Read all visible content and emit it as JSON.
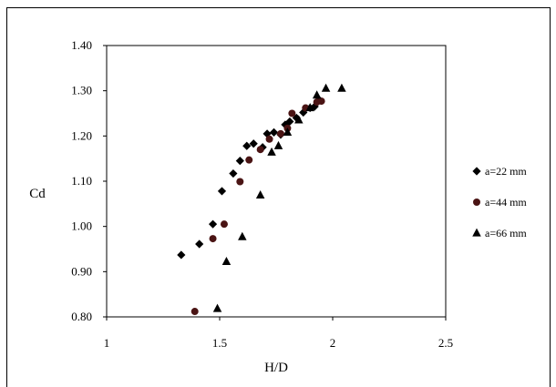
{
  "chart_data": {
    "type": "scatter",
    "title": "",
    "xlabel": "H/D",
    "ylabel": "Cd",
    "xlim": [
      1,
      2.5
    ],
    "ylim": [
      0.8,
      1.4
    ],
    "xticks": [
      1,
      1.5,
      2,
      2.5
    ],
    "xtick_labels": [
      "1",
      "1.5",
      "2",
      "2.5"
    ],
    "yticks": [
      0.8,
      0.9,
      1.0,
      1.1,
      1.2,
      1.3,
      1.4
    ],
    "ytick_labels": [
      "0.80",
      "0.90",
      "1.00",
      "1.10",
      "1.20",
      "1.30",
      "1.40"
    ],
    "grid": false,
    "legend_position": "right",
    "series": [
      {
        "name": "a=22 mm",
        "marker": "diamond",
        "color": "#000000",
        "points": [
          [
            1.33,
            0.937
          ],
          [
            1.41,
            0.961
          ],
          [
            1.47,
            1.005
          ],
          [
            1.51,
            1.078
          ],
          [
            1.56,
            1.117
          ],
          [
            1.59,
            1.145
          ],
          [
            1.62,
            1.178
          ],
          [
            1.65,
            1.183
          ],
          [
            1.69,
            1.175
          ],
          [
            1.71,
            1.205
          ],
          [
            1.74,
            1.208
          ],
          [
            1.77,
            1.203
          ],
          [
            1.79,
            1.225
          ],
          [
            1.81,
            1.232
          ],
          [
            1.84,
            1.24
          ],
          [
            1.87,
            1.252
          ],
          [
            1.9,
            1.262
          ],
          [
            1.92,
            1.265
          ],
          [
            1.94,
            1.28
          ]
        ]
      },
      {
        "name": "a=44 mm",
        "marker": "circle",
        "color": "#4a1414",
        "points": [
          [
            1.39,
            0.812
          ],
          [
            1.47,
            0.973
          ],
          [
            1.52,
            1.005
          ],
          [
            1.59,
            1.099
          ],
          [
            1.63,
            1.147
          ],
          [
            1.68,
            1.17
          ],
          [
            1.72,
            1.193
          ],
          [
            1.77,
            1.205
          ],
          [
            1.8,
            1.217
          ],
          [
            1.82,
            1.25
          ],
          [
            1.88,
            1.262
          ],
          [
            1.93,
            1.275
          ],
          [
            1.95,
            1.277
          ]
        ]
      },
      {
        "name": "a=66 mm",
        "marker": "triangle",
        "color": "#000000",
        "points": [
          [
            1.49,
            0.818
          ],
          [
            1.53,
            0.922
          ],
          [
            1.6,
            0.977
          ],
          [
            1.68,
            1.069
          ],
          [
            1.73,
            1.164
          ],
          [
            1.76,
            1.178
          ],
          [
            1.8,
            1.208
          ],
          [
            1.85,
            1.235
          ],
          [
            1.9,
            1.262
          ],
          [
            1.93,
            1.29
          ],
          [
            1.97,
            1.305
          ],
          [
            2.04,
            1.305
          ]
        ]
      }
    ]
  }
}
